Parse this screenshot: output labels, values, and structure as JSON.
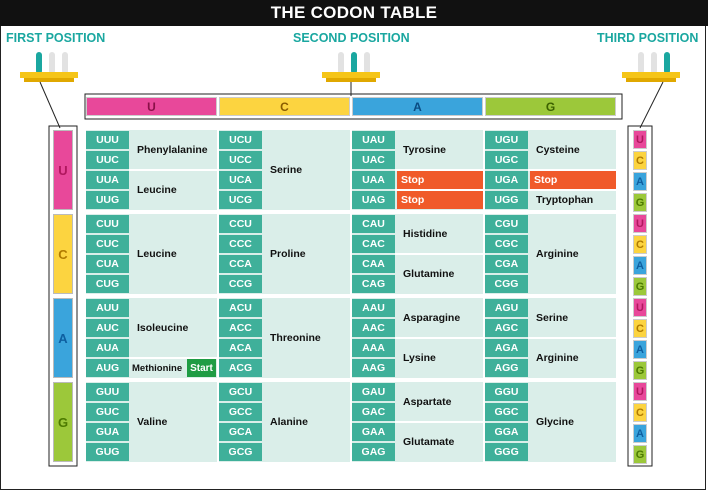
{
  "title": "THE CODON TABLE",
  "labels": {
    "first_position": "FIRST POSITION",
    "second_position": "SECOND POSITION",
    "third_position": "THIRD POSITION"
  },
  "colors": {
    "U": "#e8489a",
    "C": "#fcd440",
    "A": "#3aa4dc",
    "G": "#9cc83a",
    "teal": "#3fb09a",
    "cell_bg": "#daeee9",
    "stop": "#f05a2a",
    "start": "#1f9c44",
    "label": "#1aa7a0"
  },
  "bases": [
    "U",
    "C",
    "A",
    "G"
  ],
  "start_label": "Start",
  "blocks": [
    [
      {
        "codons": [
          "UUU",
          "UUC",
          "UUA",
          "UUG"
        ],
        "aas": [
          {
            "name": "Phenylalanine",
            "rows": [
              0,
              1
            ]
          },
          {
            "name": "Leucine",
            "rows": [
              2,
              3
            ]
          }
        ]
      },
      {
        "codons": [
          "UCU",
          "UCC",
          "UCA",
          "UCG"
        ],
        "aas": [
          {
            "name": "Serine",
            "rows": [
              0,
              3
            ]
          }
        ]
      },
      {
        "codons": [
          "UAU",
          "UAC",
          "UAA",
          "UAG"
        ],
        "aas": [
          {
            "name": "Tyrosine",
            "rows": [
              0,
              1
            ]
          },
          {
            "name": "Stop",
            "rows": [
              2,
              2
            ],
            "stop": true
          },
          {
            "name": "Stop",
            "rows": [
              3,
              3
            ],
            "stop": true
          }
        ]
      },
      {
        "codons": [
          "UGU",
          "UGC",
          "UGA",
          "UGG"
        ],
        "aas": [
          {
            "name": "Cysteine",
            "rows": [
              0,
              1
            ]
          },
          {
            "name": "Stop",
            "rows": [
              2,
              2
            ],
            "stop": true
          },
          {
            "name": "Tryptophan",
            "rows": [
              3,
              3
            ]
          }
        ]
      }
    ],
    [
      {
        "codons": [
          "CUU",
          "CUC",
          "CUA",
          "CUG"
        ],
        "aas": [
          {
            "name": "Leucine",
            "rows": [
              0,
              3
            ]
          }
        ]
      },
      {
        "codons": [
          "CCU",
          "CCC",
          "CCA",
          "CCG"
        ],
        "aas": [
          {
            "name": "Proline",
            "rows": [
              0,
              3
            ]
          }
        ]
      },
      {
        "codons": [
          "CAU",
          "CAC",
          "CAA",
          "CAG"
        ],
        "aas": [
          {
            "name": "Histidine",
            "rows": [
              0,
              1
            ]
          },
          {
            "name": "Glutamine",
            "rows": [
              2,
              3
            ]
          }
        ]
      },
      {
        "codons": [
          "CGU",
          "CGC",
          "CGA",
          "CGG"
        ],
        "aas": [
          {
            "name": "Arginine",
            "rows": [
              0,
              3
            ]
          }
        ]
      }
    ],
    [
      {
        "codons": [
          "AUU",
          "AUC",
          "AUA",
          "AUG"
        ],
        "aas": [
          {
            "name": "Isoleucine",
            "rows": [
              0,
              2
            ]
          },
          {
            "name": "Methionine",
            "rows": [
              3,
              3
            ],
            "start": true
          }
        ]
      },
      {
        "codons": [
          "ACU",
          "ACC",
          "ACA",
          "ACG"
        ],
        "aas": [
          {
            "name": "Threonine",
            "rows": [
              0,
              3
            ]
          }
        ]
      },
      {
        "codons": [
          "AAU",
          "AAC",
          "AAA",
          "AAG"
        ],
        "aas": [
          {
            "name": "Asparagine",
            "rows": [
              0,
              1
            ]
          },
          {
            "name": "Lysine",
            "rows": [
              2,
              3
            ]
          }
        ]
      },
      {
        "codons": [
          "AGU",
          "AGC",
          "AGA",
          "AGG"
        ],
        "aas": [
          {
            "name": "Serine",
            "rows": [
              0,
              1
            ]
          },
          {
            "name": "Arginine",
            "rows": [
              2,
              3
            ]
          }
        ]
      }
    ],
    [
      {
        "codons": [
          "GUU",
          "GUC",
          "GUA",
          "GUG"
        ],
        "aas": [
          {
            "name": "Valine",
            "rows": [
              0,
              3
            ]
          }
        ]
      },
      {
        "codons": [
          "GCU",
          "GCC",
          "GCA",
          "GCG"
        ],
        "aas": [
          {
            "name": "Alanine",
            "rows": [
              0,
              3
            ]
          }
        ]
      },
      {
        "codons": [
          "GAU",
          "GAC",
          "GAA",
          "GAG"
        ],
        "aas": [
          {
            "name": "Aspartate",
            "rows": [
              0,
              1
            ]
          },
          {
            "name": "Glutamate",
            "rows": [
              2,
              3
            ]
          }
        ]
      },
      {
        "codons": [
          "GGU",
          "GGC",
          "GGA",
          "GGG"
        ],
        "aas": [
          {
            "name": "Glycine",
            "rows": [
              0,
              3
            ]
          }
        ]
      }
    ]
  ]
}
